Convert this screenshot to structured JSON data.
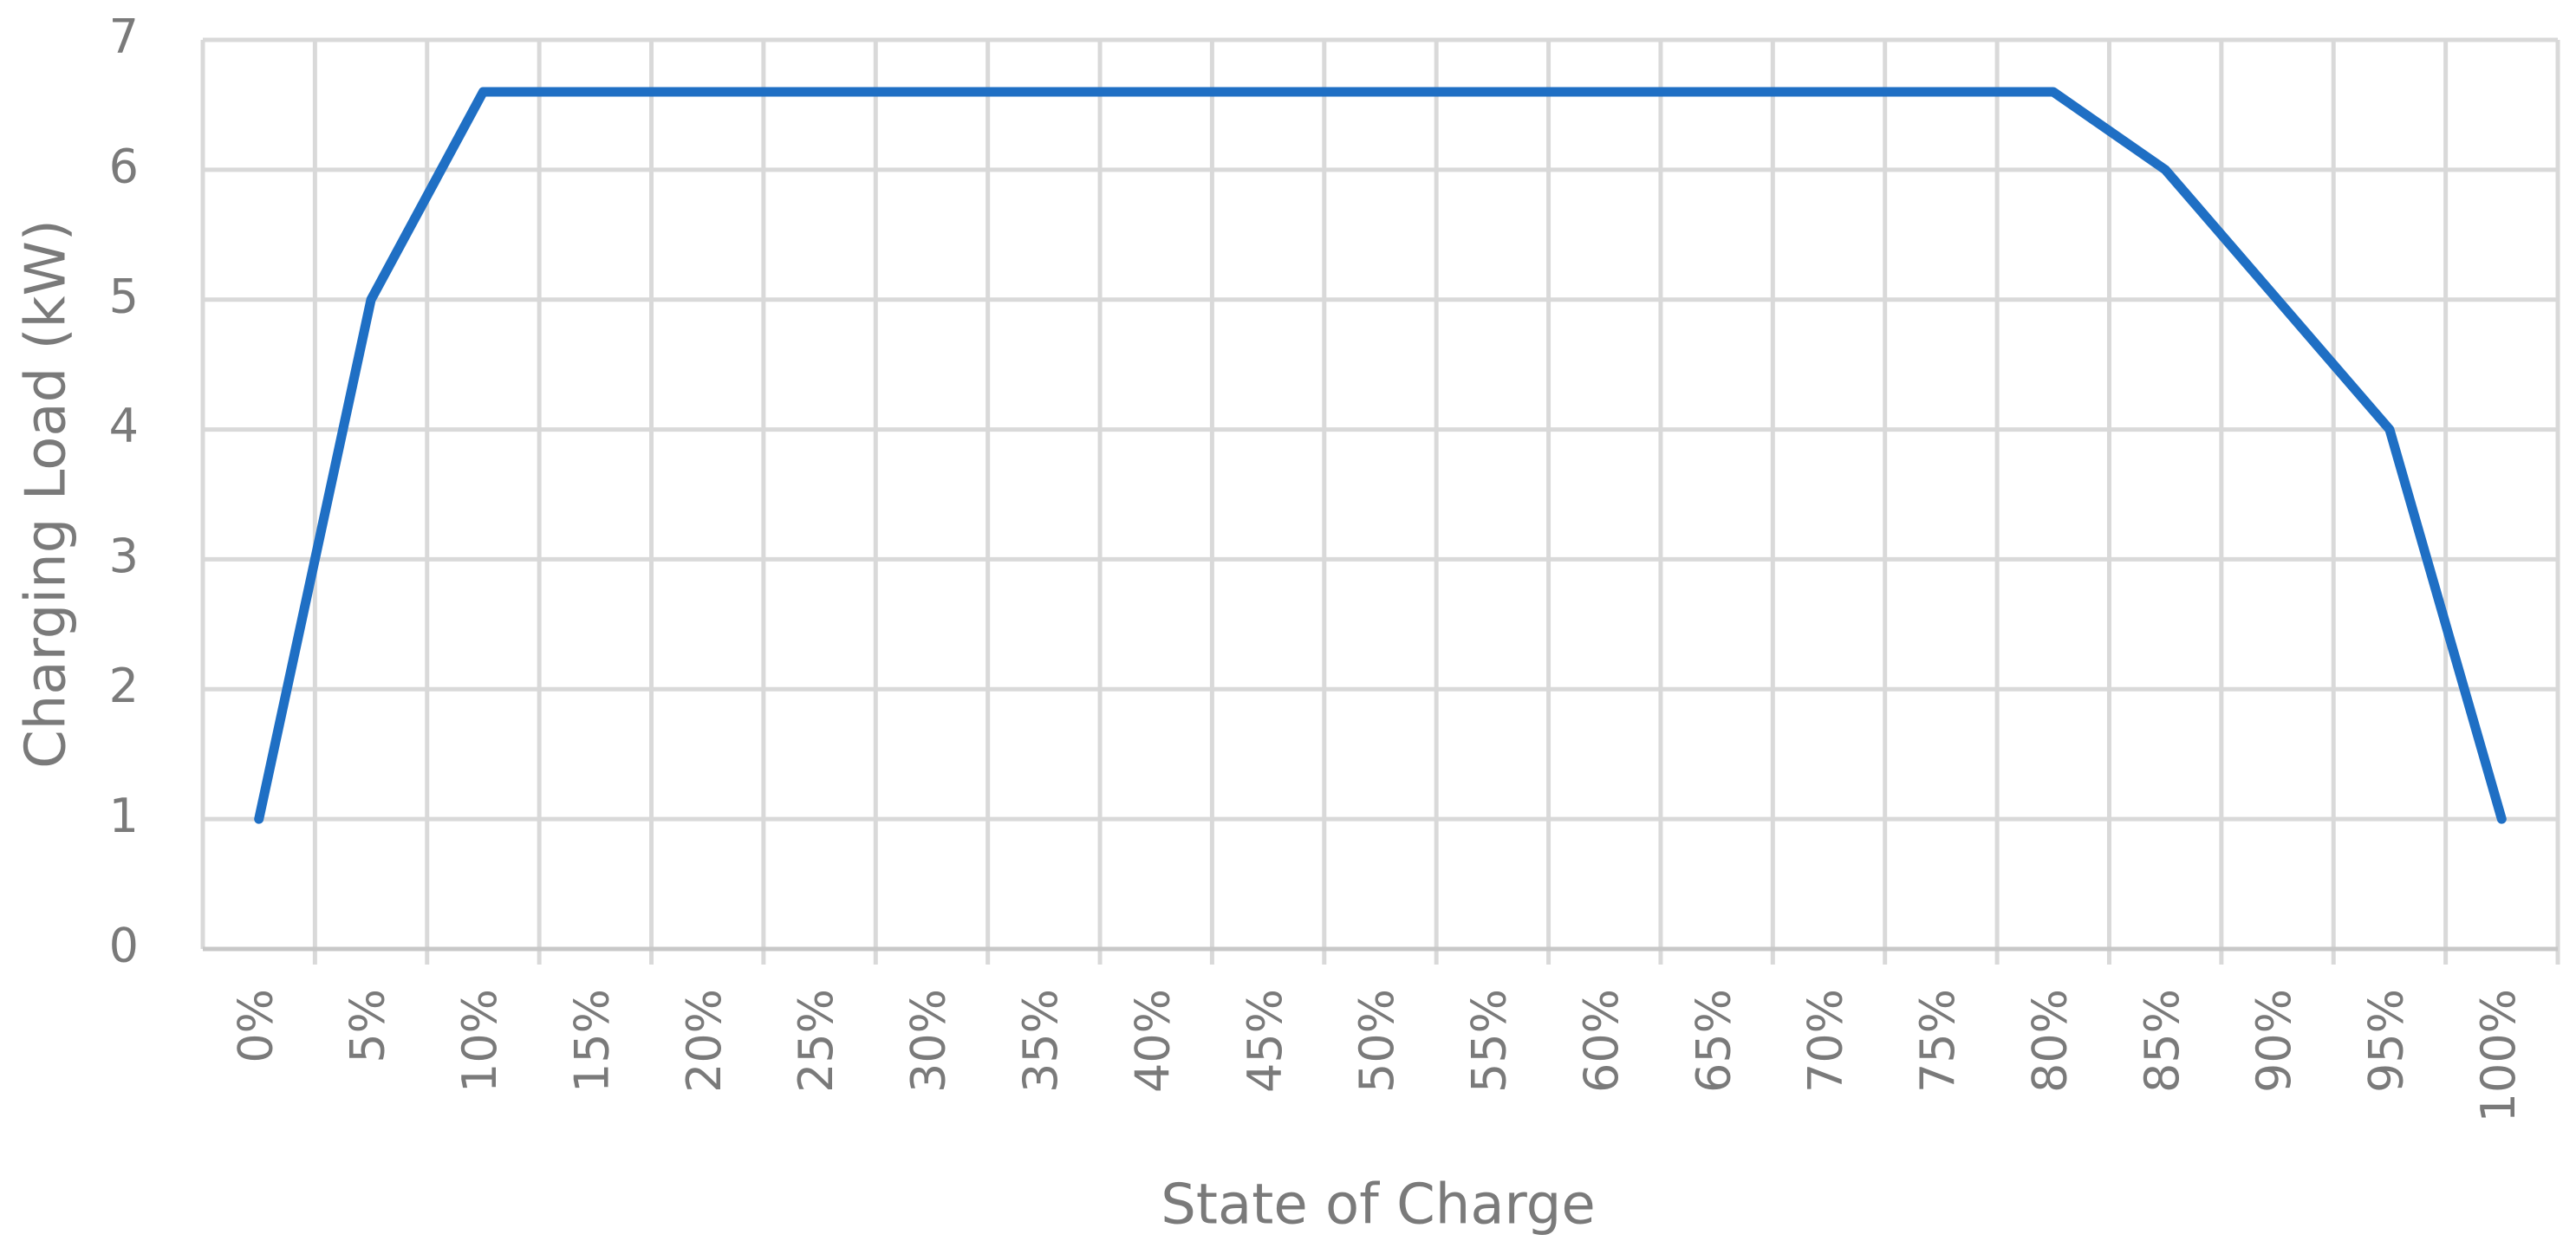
{
  "chart_data": {
    "type": "line",
    "x_label": "State of Charge",
    "y_label": "Charging Load (kW)",
    "categories": [
      "0%",
      "5%",
      "10%",
      "15%",
      "20%",
      "25%",
      "30%",
      "35%",
      "40%",
      "45%",
      "50%",
      "55%",
      "60%",
      "65%",
      "70%",
      "75%",
      "80%",
      "85%",
      "90%",
      "95%",
      "100%"
    ],
    "values": [
      1,
      5,
      6.6,
      6.6,
      6.6,
      6.6,
      6.6,
      6.6,
      6.6,
      6.6,
      6.6,
      6.6,
      6.6,
      6.6,
      6.6,
      6.6,
      6.6,
      6,
      5,
      4,
      1
    ],
    "color": "#1f6fc4",
    "ylim": [
      0,
      7
    ],
    "yticks": [
      0,
      1,
      2,
      3,
      4,
      5,
      6,
      7
    ],
    "grid": true
  }
}
